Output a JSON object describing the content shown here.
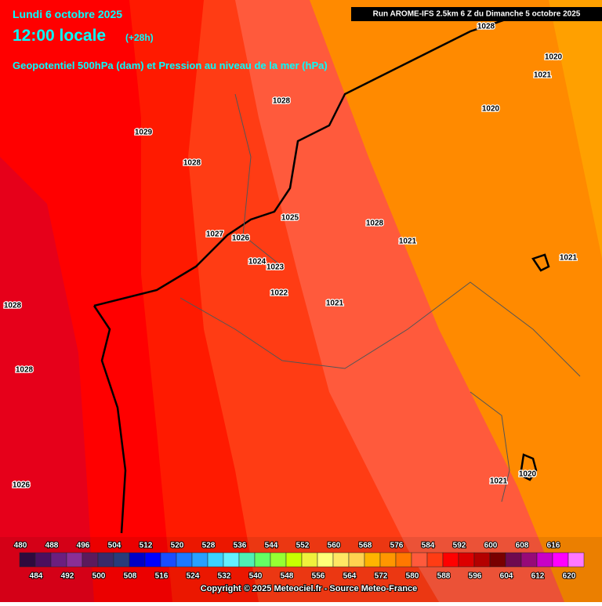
{
  "header": {
    "date": "Lundi 6 octobre 2025",
    "time": "12:00 locale",
    "lead": "(+28h)",
    "subtitle": "Geopotentiel 500hPa (dam) et Pression au niveau de la mer (hPa)",
    "run": "Run AROME-IFS 2.5km 6 Z du Dimanche 5 octobre 2025"
  },
  "pressure_labels": [
    "1028",
    "1029",
    "1028",
    "1028",
    "1027",
    "1026",
    "1025",
    "1024",
    "1023",
    "1022",
    "1021",
    "1021",
    "1021",
    "1028",
    "1028",
    "1026",
    "1020",
    "1021",
    "1028",
    "1020",
    "1021",
    "1020"
  ],
  "legend": {
    "items": [
      {
        "value": 480,
        "color": "#2e0a3e"
      },
      {
        "value": 484,
        "color": "#4b0f5e"
      },
      {
        "value": 488,
        "color": "#6b1f7f"
      },
      {
        "value": 492,
        "color": "#8a2f96"
      },
      {
        "value": 496,
        "color": "#5c1a5c"
      },
      {
        "value": 500,
        "color": "#3a2a6a"
      },
      {
        "value": 504,
        "color": "#283c7a"
      },
      {
        "value": 508,
        "color": "#0000c8"
      },
      {
        "value": 512,
        "color": "#0000ff"
      },
      {
        "value": 516,
        "color": "#1a4cff"
      },
      {
        "value": 520,
        "color": "#1e78ff"
      },
      {
        "value": 524,
        "color": "#28a0ff"
      },
      {
        "value": 528,
        "color": "#3cd2ff"
      },
      {
        "value": 532,
        "color": "#64f0ff"
      },
      {
        "value": 536,
        "color": "#50f0b4"
      },
      {
        "value": 540,
        "color": "#64ff64"
      },
      {
        "value": 544,
        "color": "#96ff32"
      },
      {
        "value": 548,
        "color": "#c8ff00"
      },
      {
        "value": 552,
        "color": "#f0f03c"
      },
      {
        "value": 556,
        "color": "#ffff78"
      },
      {
        "value": 560,
        "color": "#ffe664"
      },
      {
        "value": 564,
        "color": "#ffd250"
      },
      {
        "value": 568,
        "color": "#ffb400"
      },
      {
        "value": 572,
        "color": "#ff9600"
      },
      {
        "value": 576,
        "color": "#ff7800"
      },
      {
        "value": 580,
        "color": "#ff5a3c"
      },
      {
        "value": 584,
        "color": "#ff3c14"
      },
      {
        "value": 588,
        "color": "#ff0000"
      },
      {
        "value": 592,
        "color": "#dc0000"
      },
      {
        "value": 596,
        "color": "#b40000"
      },
      {
        "value": 600,
        "color": "#780000"
      },
      {
        "value": 604,
        "color": "#6e0a50"
      },
      {
        "value": 608,
        "color": "#960a78"
      },
      {
        "value": 612,
        "color": "#c800c8"
      },
      {
        "value": 616,
        "color": "#ff00ff"
      },
      {
        "value": 620,
        "color": "#ff78ff"
      }
    ]
  },
  "footer": {
    "copyright": "Copyright © 2025 Meteociel.fr - Source Meteo-France"
  }
}
